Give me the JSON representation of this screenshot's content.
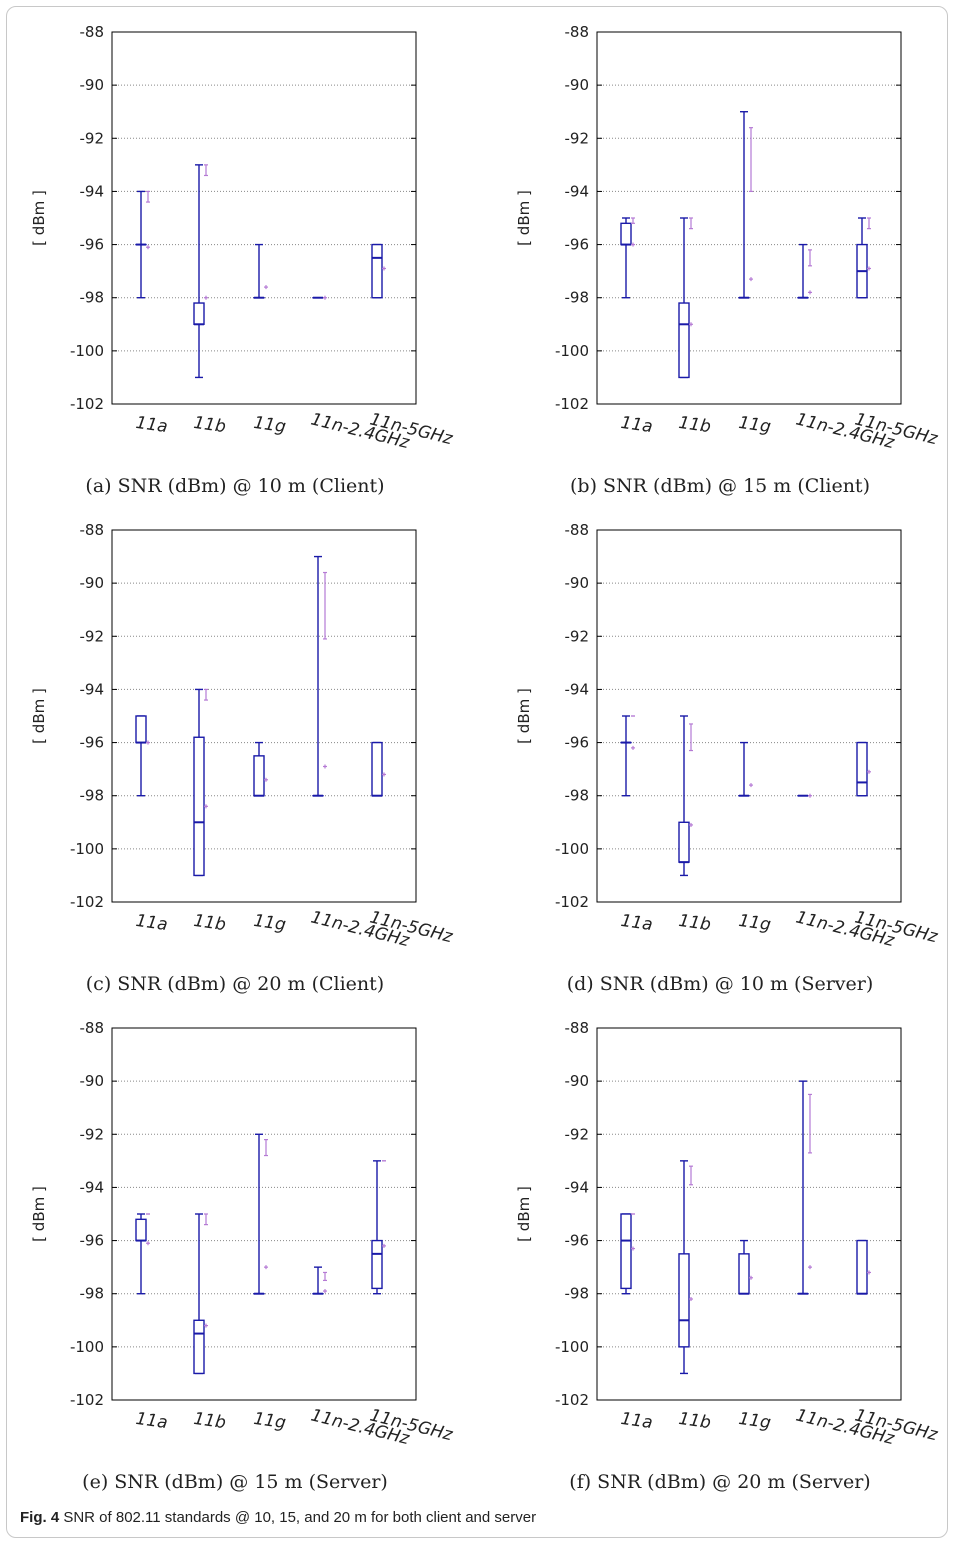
{
  "figure": {
    "label": "Fig. 4",
    "caption": "SNR of 802.11 standards @ 10, 15, and 20 m for both client and server"
  },
  "colors": {
    "box": "#1a1aa8",
    "mean": "#b57ad4",
    "grid": "#888888"
  },
  "chart_data": [
    {
      "type": "box",
      "caption": "(a) SNR (dBm) @ 10 m (Client)",
      "ylabel": "[ dBm ]",
      "ylim": [
        -102,
        -88
      ],
      "yticks": [
        "-88",
        "-90",
        "-92",
        "-94",
        "-96",
        "-98",
        "-100",
        "-102"
      ],
      "categories": [
        "11a",
        "11b",
        "11g",
        "11n-2.4GHz",
        "11n-5GHz"
      ],
      "series": [
        {
          "min": -98,
          "q1": -96,
          "median": -96,
          "q3": -96,
          "max": -94,
          "mean": -96.1,
          "std_lo": -94.4,
          "std_hi": -94.0
        },
        {
          "min": -101,
          "q1": -99,
          "median": -99,
          "q3": -98.2,
          "max": -93,
          "mean": -98.0,
          "std_lo": -93.4,
          "std_hi": -93.0
        },
        {
          "min": -98,
          "q1": -98,
          "median": -98,
          "q3": -98,
          "max": -96,
          "mean": -97.6,
          "std_lo": null,
          "std_hi": null
        },
        {
          "min": -98,
          "q1": -98,
          "median": -98,
          "q3": -98,
          "max": -98,
          "mean": -98.0,
          "std_lo": null,
          "std_hi": null
        },
        {
          "min": -98,
          "q1": -98,
          "median": -96.5,
          "q3": -96,
          "max": -96,
          "mean": -96.9,
          "std_lo": null,
          "std_hi": null
        }
      ]
    },
    {
      "type": "box",
      "caption": "(b) SNR (dBm) @ 15 m (Client)",
      "ylabel": "[ dBm ]",
      "ylim": [
        -102,
        -88
      ],
      "yticks": [
        "-88",
        "-90",
        "-92",
        "-94",
        "-96",
        "-98",
        "-100",
        "-102"
      ],
      "categories": [
        "11a",
        "11b",
        "11g",
        "11n-2.4GHz",
        "11n-5GHz"
      ],
      "series": [
        {
          "min": -98,
          "q1": -96,
          "median": -96,
          "q3": -95.2,
          "max": -95,
          "mean": -96.0,
          "std_lo": -95.2,
          "std_hi": -95.0
        },
        {
          "min": -101,
          "q1": -101,
          "median": -99,
          "q3": -98.2,
          "max": -95,
          "mean": -99.0,
          "std_lo": -95.4,
          "std_hi": -95.0
        },
        {
          "min": -98,
          "q1": -98,
          "median": -98,
          "q3": -98,
          "max": -91,
          "mean": -97.3,
          "std_lo": -94.0,
          "std_hi": -91.6
        },
        {
          "min": -98,
          "q1": -98,
          "median": -98,
          "q3": -98,
          "max": -96,
          "mean": -97.8,
          "std_lo": -96.8,
          "std_hi": -96.2
        },
        {
          "min": -98,
          "q1": -98,
          "median": -97,
          "q3": -96,
          "max": -95,
          "mean": -96.9,
          "std_lo": -95.4,
          "std_hi": -95.0
        }
      ]
    },
    {
      "type": "box",
      "caption": "(c) SNR (dBm) @ 20 m (Client)",
      "ylabel": "[ dBm ]",
      "ylim": [
        -102,
        -88
      ],
      "yticks": [
        "-88",
        "-90",
        "-92",
        "-94",
        "-96",
        "-98",
        "-100",
        "-102"
      ],
      "categories": [
        "11a",
        "11b",
        "11g",
        "11n-2.4GHz",
        "11n-5GHz"
      ],
      "series": [
        {
          "min": -98,
          "q1": -96,
          "median": -96,
          "q3": -95,
          "max": -95,
          "mean": -96.0,
          "std_lo": null,
          "std_hi": null
        },
        {
          "min": -101,
          "q1": -101,
          "median": -99,
          "q3": -95.8,
          "max": -94,
          "mean": -98.4,
          "std_lo": -94.4,
          "std_hi": -94.0
        },
        {
          "min": -98,
          "q1": -98,
          "median": -98,
          "q3": -96.5,
          "max": -96,
          "mean": -97.4,
          "std_lo": null,
          "std_hi": null
        },
        {
          "min": -98,
          "q1": -98,
          "median": -98,
          "q3": -98,
          "max": -89,
          "mean": -96.9,
          "std_lo": -92.1,
          "std_hi": -89.6
        },
        {
          "min": -98,
          "q1": -98,
          "median": -98,
          "q3": -96,
          "max": -96,
          "mean": -97.2,
          "std_lo": null,
          "std_hi": null
        }
      ]
    },
    {
      "type": "box",
      "caption": "(d) SNR (dBm) @ 10 m (Server)",
      "ylabel": "[ dBm ]",
      "ylim": [
        -102,
        -88
      ],
      "yticks": [
        "-88",
        "-90",
        "-92",
        "-94",
        "-96",
        "-98",
        "-100",
        "-102"
      ],
      "categories": [
        "11a",
        "11b",
        "11g",
        "11n-2.4GHz",
        "11n-5GHz"
      ],
      "series": [
        {
          "min": -98,
          "q1": -96,
          "median": -96,
          "q3": -96,
          "max": -95,
          "mean": -96.2,
          "std_lo": -95.0,
          "std_hi": -95.0
        },
        {
          "min": -101,
          "q1": -100.5,
          "median": -100.5,
          "q3": -99,
          "max": -95,
          "mean": -99.1,
          "std_lo": -96.3,
          "std_hi": -95.3
        },
        {
          "min": -98,
          "q1": -98,
          "median": -98,
          "q3": -98,
          "max": -96,
          "mean": -97.6,
          "std_lo": null,
          "std_hi": null
        },
        {
          "min": -98,
          "q1": -98,
          "median": -98,
          "q3": -98,
          "max": -98,
          "mean": -98.0,
          "std_lo": null,
          "std_hi": null
        },
        {
          "min": -98,
          "q1": -98,
          "median": -97.5,
          "q3": -96,
          "max": -96,
          "mean": -97.1,
          "std_lo": null,
          "std_hi": null
        }
      ]
    },
    {
      "type": "box",
      "caption": "(e) SNR (dBm) @ 15 m (Server)",
      "ylabel": "[ dBm ]",
      "ylim": [
        -102,
        -88
      ],
      "yticks": [
        "-88",
        "-90",
        "-92",
        "-94",
        "-96",
        "-98",
        "-100",
        "-102"
      ],
      "categories": [
        "11a",
        "11b",
        "11g",
        "11n-2.4GHz",
        "11n-5GHz"
      ],
      "series": [
        {
          "min": -98,
          "q1": -96,
          "median": -96,
          "q3": -95.2,
          "max": -95,
          "mean": -96.1,
          "std_lo": -95.0,
          "std_hi": -95.0
        },
        {
          "min": -101,
          "q1": -101,
          "median": -99.5,
          "q3": -99,
          "max": -95,
          "mean": -99.2,
          "std_lo": -95.4,
          "std_hi": -95.0
        },
        {
          "min": -98,
          "q1": -98,
          "median": -98,
          "q3": -98,
          "max": -92,
          "mean": -97.0,
          "std_lo": -92.8,
          "std_hi": -92.2
        },
        {
          "min": -98,
          "q1": -98,
          "median": -98,
          "q3": -98,
          "max": -97,
          "mean": -97.9,
          "std_lo": -97.5,
          "std_hi": -97.2
        },
        {
          "min": -98,
          "q1": -97.8,
          "median": -96.5,
          "q3": -96,
          "max": -93,
          "mean": -96.2,
          "std_lo": -93.0,
          "std_hi": -93.0
        }
      ]
    },
    {
      "type": "box",
      "caption": "(f) SNR (dBm) @ 20 m (Server)",
      "ylabel": "[ dBm ]",
      "ylim": [
        -102,
        -88
      ],
      "yticks": [
        "-88",
        "-90",
        "-92",
        "-94",
        "-96",
        "-98",
        "-100",
        "-102"
      ],
      "categories": [
        "11a",
        "11b",
        "11g",
        "11n-2.4GHz",
        "11n-5GHz"
      ],
      "series": [
        {
          "min": -98,
          "q1": -97.8,
          "median": -96,
          "q3": -95,
          "max": -95,
          "mean": -96.3,
          "std_lo": -95.0,
          "std_hi": -95.0
        },
        {
          "min": -101,
          "q1": -100,
          "median": -99,
          "q3": -96.5,
          "max": -93,
          "mean": -98.2,
          "std_lo": -93.9,
          "std_hi": -93.2
        },
        {
          "min": -98,
          "q1": -98,
          "median": -98,
          "q3": -96.5,
          "max": -96,
          "mean": -97.4,
          "std_lo": null,
          "std_hi": null
        },
        {
          "min": -98,
          "q1": -98,
          "median": -98,
          "q3": -98,
          "max": -90,
          "mean": -97.0,
          "std_lo": -92.7,
          "std_hi": -90.5
        },
        {
          "min": -98,
          "q1": -98,
          "median": -98,
          "q3": -96,
          "max": -96,
          "mean": -97.2,
          "std_lo": null,
          "std_hi": null
        }
      ]
    }
  ]
}
